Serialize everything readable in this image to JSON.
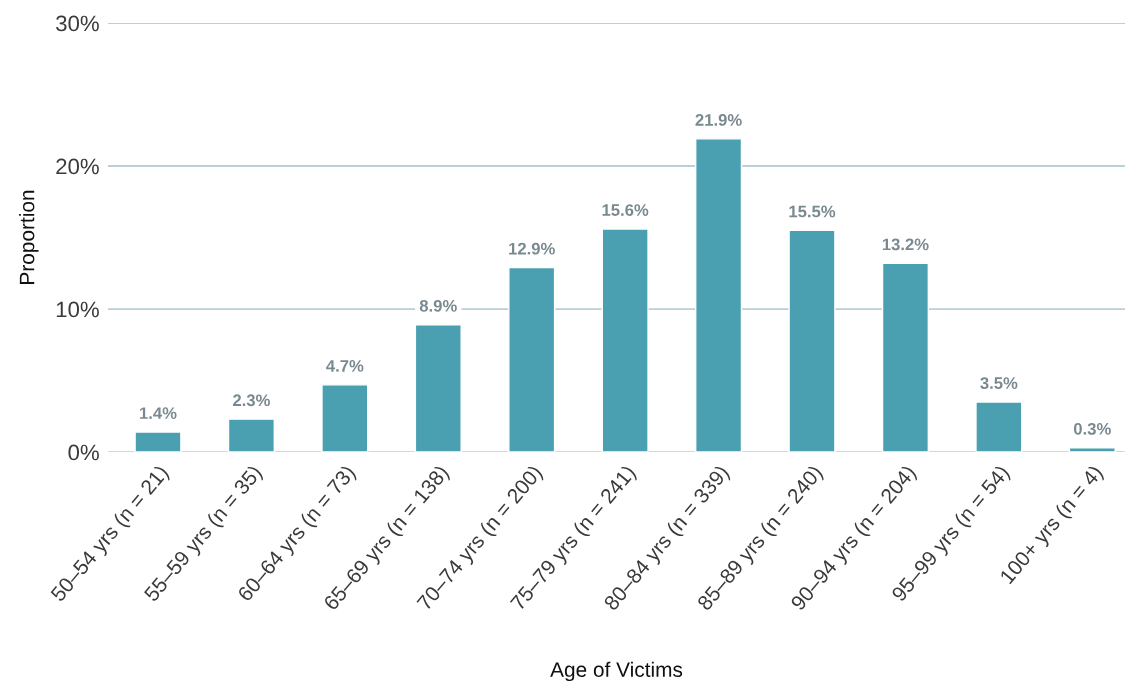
{
  "chart_data": {
    "type": "bar",
    "xlabel": "Age of Victims",
    "ylabel": "Proportion",
    "categories": [
      "50–54 yrs (n = 21)",
      "55–59 yrs (n = 35)",
      "60–64 yrs (n = 73)",
      "65–69 yrs (n = 138)",
      "70–74 yrs (n = 200)",
      "75–79 yrs (n = 241)",
      "80–84 yrs (n = 339)",
      "85–89 yrs (n = 240)",
      "90–94 yrs (n = 204)",
      "95–99 yrs (n = 54)",
      "100+ yrs (n = 4)"
    ],
    "values": [
      1.4,
      2.3,
      4.7,
      8.9,
      12.9,
      15.6,
      21.9,
      15.5,
      13.2,
      3.5,
      0.3
    ],
    "value_labels": [
      "1.4%",
      "2.3%",
      "4.7%",
      "8.9%",
      "12.9%",
      "15.6%",
      "21.9%",
      "15.5%",
      "13.2%",
      "3.5%",
      "0.3%"
    ],
    "color": "#4aa0b0",
    "ylim": [
      0,
      30
    ],
    "yticks": [
      {
        "value": 0,
        "label": "0%"
      },
      {
        "value": 10,
        "label": "10%"
      },
      {
        "value": 20,
        "label": "20%"
      },
      {
        "value": 30,
        "label": "30%"
      }
    ],
    "grid": "y",
    "legend": false
  }
}
